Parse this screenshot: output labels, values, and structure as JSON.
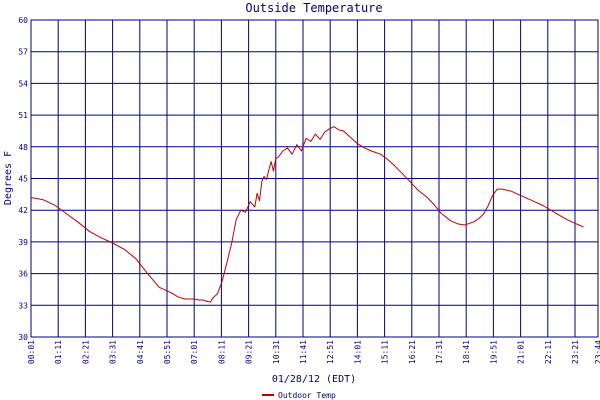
{
  "colors": {
    "grid": "#000080",
    "frame": "#000080",
    "series": "#c00000",
    "text": "#000080",
    "background": "#ffffff"
  },
  "chart_data": {
    "type": "line",
    "title": "Outside Temperature",
    "xlabel": "01/28/12 (EDT)",
    "ylabel": "Degrees F",
    "ylim": [
      30,
      60
    ],
    "yticks": [
      30,
      33,
      36,
      39,
      42,
      45,
      48,
      51,
      54,
      57,
      60
    ],
    "xticks": [
      "00:01",
      "01:11",
      "02:21",
      "03:31",
      "04:41",
      "05:51",
      "07:01",
      "08:11",
      "09:21",
      "10:31",
      "11:41",
      "12:51",
      "14:01",
      "15:11",
      "16:21",
      "17:31",
      "18:41",
      "19:51",
      "21:01",
      "22:11",
      "23:21",
      "23:44"
    ],
    "grid": true,
    "legend_position": "bottom-left",
    "series": [
      {
        "name": "Outdoor Temp",
        "x": [
          0,
          0.5,
          1.0,
          1.5,
          2.0,
          2.5,
          3.0,
          3.5,
          4.0,
          4.5,
          5.0,
          5.5,
          6.0,
          6.3,
          6.6,
          6.8,
          7.0,
          7.2,
          7.4,
          7.5,
          7.7,
          7.8,
          8.0,
          8.2,
          8.4,
          8.6,
          8.8,
          9.0,
          9.2,
          9.4,
          9.6,
          9.7,
          9.8,
          9.9,
          10.0,
          10.1,
          10.2,
          10.3,
          10.4,
          10.5,
          10.6,
          10.8,
          11.0,
          11.2,
          11.4,
          11.6,
          11.8,
          12.0,
          12.2,
          12.4,
          12.6,
          12.8,
          13.0,
          13.2,
          13.4,
          13.6,
          13.8,
          14.0,
          14.3,
          14.6,
          15.0,
          15.3,
          15.6,
          16.0,
          16.3,
          16.6,
          17.0,
          17.3,
          17.6,
          18.0,
          18.3,
          18.6,
          19.0,
          19.2,
          19.4,
          19.6,
          19.8,
          20.0,
          20.2,
          20.4,
          20.6,
          20.8,
          21.0,
          21.3,
          21.6,
          22.0,
          22.3,
          22.6,
          23.0,
          23.3,
          23.5,
          23.7
        ],
        "values": [
          43.2,
          43.0,
          42.5,
          41.7,
          40.9,
          40.0,
          39.4,
          38.9,
          38.3,
          37.4,
          36.0,
          34.7,
          34.2,
          33.8,
          33.6,
          33.6,
          33.6,
          33.5,
          33.5,
          33.4,
          33.3,
          33.7,
          34.1,
          35.3,
          37.0,
          38.8,
          41.1,
          42.0,
          41.8,
          42.8,
          42.3,
          43.6,
          42.9,
          44.7,
          45.2,
          44.9,
          45.8,
          46.6,
          45.7,
          46.9,
          47.0,
          47.6,
          47.9,
          47.3,
          48.2,
          47.6,
          48.8,
          48.5,
          49.2,
          48.7,
          49.4,
          49.7,
          49.9,
          49.6,
          49.5,
          49.1,
          48.7,
          48.3,
          47.9,
          47.6,
          47.3,
          46.8,
          46.2,
          45.3,
          44.6,
          43.9,
          43.2,
          42.5,
          41.7,
          41.0,
          40.7,
          40.6,
          40.9,
          41.2,
          41.6,
          42.4,
          43.4,
          44.0,
          44.0,
          43.9,
          43.8,
          43.6,
          43.4,
          43.1,
          42.8,
          42.4,
          42.0,
          41.6,
          41.1,
          40.8,
          40.6,
          40.4
        ]
      }
    ]
  }
}
